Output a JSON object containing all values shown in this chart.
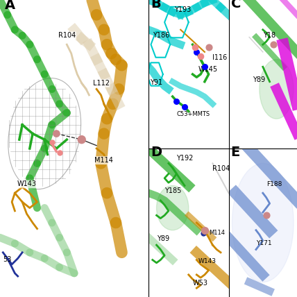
{
  "panel_labels": [
    "A",
    "B",
    "C",
    "D",
    "E"
  ],
  "panel_positions": {
    "A": [
      0.0,
      0.0,
      0.5,
      1.0
    ],
    "B": [
      0.5,
      0.5,
      0.27,
      0.5
    ],
    "C": [
      0.77,
      0.5,
      0.23,
      0.5
    ],
    "D": [
      0.5,
      0.0,
      0.27,
      0.5
    ],
    "E": [
      0.77,
      0.0,
      0.23,
      0.5
    ]
  },
  "panel_label_fontsize": 14,
  "background_color": "#ffffff",
  "colors": {
    "green": "#22aa22",
    "orange": "#cc8800",
    "cyan": "#00cccc",
    "magenta": "#dd00dd",
    "blue_purple": "#6688cc",
    "light_green": "#88cc88",
    "salmon": "#ee8888",
    "dark_green": "#228833",
    "tan": "#ddccaa",
    "gray": "#aaaaaa",
    "pink_sphere": "#cc8888",
    "navy": "#223399"
  }
}
